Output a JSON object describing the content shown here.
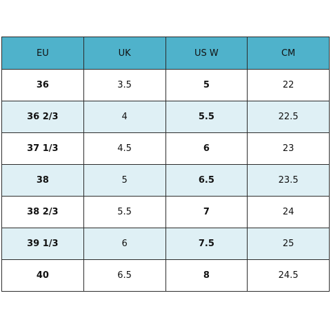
{
  "table": {
    "header": [
      "EU",
      "UK",
      "US W",
      "CM"
    ],
    "rows": [
      [
        "36",
        "3.5",
        "5",
        "22"
      ],
      [
        "36 2/3",
        "4",
        "5.5",
        "22.5"
      ],
      [
        "37 1/3",
        "4.5",
        "6",
        "23"
      ],
      [
        "38",
        "5",
        "6.5",
        "23.5"
      ],
      [
        "38 2/3",
        "5.5",
        "7",
        "24"
      ],
      [
        "39 1/3",
        "6",
        "7.5",
        "25"
      ],
      [
        "40",
        "6.5",
        "8",
        "24.5"
      ]
    ]
  }
}
